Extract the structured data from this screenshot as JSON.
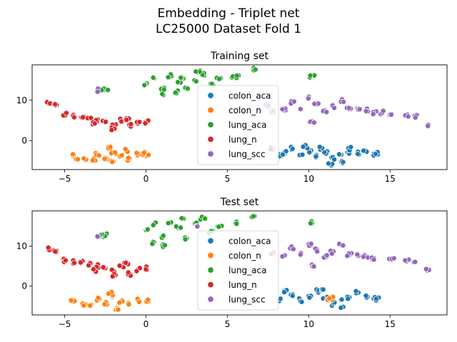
{
  "figure": {
    "suptitle_line1": "Embedding - Triplet net",
    "suptitle_line2": "LC25000  Dataset Fold 1"
  },
  "chart_data": [
    {
      "type": "scatter",
      "title": "Training set",
      "xlabel": "",
      "ylabel": "",
      "xlim": [
        -7,
        18.5
      ],
      "ylim": [
        -7.2,
        18.8
      ],
      "xticks": [
        -5,
        0,
        5,
        10,
        15
      ],
      "yticks": [
        0,
        10
      ],
      "grid": false,
      "legend_position": "center",
      "series": [
        {
          "name": "colon_aca",
          "color": "#1f77b4",
          "points": [
            [
              8.5,
              -2.8
            ],
            [
              9.0,
              -2.0
            ],
            [
              9.5,
              -3.5
            ],
            [
              10.0,
              -2.5
            ],
            [
              10.5,
              -4.0
            ],
            [
              11.0,
              -3.0
            ],
            [
              11.5,
              -4.5
            ],
            [
              12.0,
              -3.5
            ],
            [
              12.5,
              -2.8
            ],
            [
              13.0,
              -3.2
            ],
            [
              13.5,
              -2.5
            ],
            [
              14.0,
              -3.3
            ],
            [
              14.2,
              -3.3
            ],
            [
              11.3,
              -5.8
            ],
            [
              12.0,
              -5.3
            ],
            [
              9.8,
              -1.5
            ],
            [
              10.8,
              -2.0
            ],
            [
              12.5,
              -2.0
            ],
            [
              7.8,
              -2.0
            ],
            [
              8.3,
              -3.8
            ]
          ]
        },
        {
          "name": "colon_n",
          "color": "#ff7f0e",
          "points": [
            [
              -4.5,
              -3.8
            ],
            [
              -3.8,
              -4.5
            ],
            [
              -3.0,
              -3.5
            ],
            [
              -2.5,
              -4.2
            ],
            [
              -2.0,
              -3.0
            ],
            [
              -1.5,
              -3.8
            ],
            [
              -1.0,
              -4.5
            ],
            [
              -0.5,
              -3.5
            ],
            [
              0.0,
              -3.8
            ],
            [
              -2.2,
              -2.0
            ],
            [
              -1.2,
              -2.5
            ],
            [
              -3.2,
              -4.8
            ],
            [
              -2.0,
              -5.2
            ],
            [
              -4.3,
              -4.6
            ],
            [
              -0.2,
              -3.2
            ]
          ]
        },
        {
          "name": "lung_aca",
          "color": "#2ca02c",
          "points": [
            [
              0.0,
              14.0
            ],
            [
              0.5,
              15.5
            ],
            [
              1.0,
              13.0
            ],
            [
              1.5,
              16.0
            ],
            [
              2.0,
              14.5
            ],
            [
              2.5,
              12.8
            ],
            [
              3.0,
              15.0
            ],
            [
              3.5,
              16.5
            ],
            [
              4.0,
              14.0
            ],
            [
              1.0,
              11.5
            ],
            [
              1.8,
              12.0
            ],
            [
              3.2,
              17.0
            ],
            [
              2.2,
              15.8
            ],
            [
              4.5,
              15.5
            ],
            [
              5.3,
              15.6
            ],
            [
              5.6,
              15.8
            ],
            [
              6.6,
              17.6
            ],
            [
              10.2,
              16.1
            ],
            [
              -2.5,
              12.8
            ],
            [
              -2.8,
              12.7
            ]
          ]
        },
        {
          "name": "lung_n",
          "color": "#d62728",
          "points": [
            [
              -6.0,
              9.2
            ],
            [
              -5.5,
              8.8
            ],
            [
              -5.0,
              6.5
            ],
            [
              -4.5,
              6.0
            ],
            [
              -4.0,
              5.8
            ],
            [
              -3.5,
              5.5
            ],
            [
              -3.0,
              5.0
            ],
            [
              -2.5,
              4.5
            ],
            [
              -2.0,
              4.0
            ],
            [
              -1.5,
              5.0
            ],
            [
              -1.0,
              3.8
            ],
            [
              -0.5,
              4.2
            ],
            [
              0.0,
              4.6
            ],
            [
              -2.0,
              3.0
            ],
            [
              -1.2,
              5.5
            ],
            [
              -3.2,
              4.2
            ]
          ]
        },
        {
          "name": "lung_scc",
          "color": "#9467bd",
          "points": [
            [
              7.8,
              7.2
            ],
            [
              8.5,
              7.5
            ],
            [
              9.0,
              9.5
            ],
            [
              9.5,
              8.0
            ],
            [
              10.0,
              10.5
            ],
            [
              10.5,
              9.0
            ],
            [
              11.0,
              7.5
            ],
            [
              11.5,
              8.5
            ],
            [
              12.0,
              9.8
            ],
            [
              12.5,
              7.8
            ],
            [
              13.0,
              8.0
            ],
            [
              13.5,
              7.5
            ],
            [
              14.0,
              7.0
            ],
            [
              14.5,
              7.0
            ],
            [
              15.1,
              6.6
            ],
            [
              16.0,
              6.2
            ],
            [
              16.5,
              6.1
            ],
            [
              17.3,
              3.9
            ],
            [
              10.2,
              4.8
            ],
            [
              7.5,
              8.5
            ],
            [
              -3.0,
              12.5
            ]
          ]
        }
      ]
    },
    {
      "type": "scatter",
      "title": "Test set",
      "xlabel": "",
      "ylabel": "",
      "xlim": [
        -7,
        18.5
      ],
      "ylim": [
        -7.2,
        18.8
      ],
      "xticks": [
        -5,
        0,
        5,
        10,
        15
      ],
      "yticks": [
        0,
        10
      ],
      "grid": false,
      "legend_position": "center",
      "series": [
        {
          "name": "colon_aca",
          "color": "#1f77b4",
          "points": [
            [
              8.5,
              -1.2
            ],
            [
              9.0,
              -2.0
            ],
            [
              9.5,
              -3.5
            ],
            [
              10.0,
              -2.5
            ],
            [
              10.5,
              -1.2
            ],
            [
              11.0,
              -3.0
            ],
            [
              11.5,
              -4.5
            ],
            [
              12.0,
              -3.5
            ],
            [
              12.5,
              -2.8
            ],
            [
              13.0,
              -1.5
            ],
            [
              13.5,
              -2.5
            ],
            [
              14.0,
              -3.2
            ],
            [
              14.2,
              -3.2
            ],
            [
              12.0,
              -5.5
            ],
            [
              8.2,
              -3.5
            ],
            [
              10.8,
              -1.0
            ]
          ]
        },
        {
          "name": "colon_n",
          "color": "#ff7f0e",
          "points": [
            [
              -4.5,
              -3.5
            ],
            [
              -3.8,
              -4.5
            ],
            [
              -3.0,
              -3.2
            ],
            [
              -2.5,
              -4.2
            ],
            [
              -2.0,
              -2.5
            ],
            [
              -1.5,
              -3.8
            ],
            [
              -1.0,
              -4.5
            ],
            [
              -0.5,
              -3.5
            ],
            [
              0.0,
              -3.8
            ],
            [
              -2.2,
              -1.8
            ],
            [
              -1.8,
              -5.5
            ],
            [
              -3.5,
              -4.8
            ],
            [
              11.2,
              -3.3
            ],
            [
              11.4,
              -3.0
            ]
          ]
        },
        {
          "name": "lung_aca",
          "color": "#2ca02c",
          "points": [
            [
              0.0,
              14.0
            ],
            [
              0.5,
              15.5
            ],
            [
              1.0,
              12.5
            ],
            [
              1.5,
              16.0
            ],
            [
              2.0,
              14.5
            ],
            [
              2.5,
              12.0
            ],
            [
              3.0,
              15.5
            ],
            [
              3.5,
              17.0
            ],
            [
              4.0,
              13.5
            ],
            [
              0.5,
              11.0
            ],
            [
              1.0,
              10.2
            ],
            [
              2.2,
              16.8
            ],
            [
              4.5,
              15.0
            ],
            [
              5.5,
              15.8
            ],
            [
              6.6,
              17.6
            ],
            [
              10.2,
              16.1
            ],
            [
              -2.5,
              12.7
            ],
            [
              -2.8,
              12.5
            ]
          ]
        },
        {
          "name": "lung_n",
          "color": "#d62728",
          "points": [
            [
              -6.0,
              9.2
            ],
            [
              -5.5,
              8.8
            ],
            [
              -5.0,
              6.5
            ],
            [
              -4.5,
              6.0
            ],
            [
              -4.0,
              5.8
            ],
            [
              -3.5,
              5.5
            ],
            [
              -3.0,
              5.0
            ],
            [
              -2.5,
              4.5
            ],
            [
              -2.0,
              4.0
            ],
            [
              -1.5,
              5.0
            ],
            [
              -1.0,
              3.0
            ],
            [
              -0.5,
              4.2
            ],
            [
              0.0,
              4.5
            ],
            [
              -2.0,
              2.8
            ],
            [
              -1.2,
              5.8
            ],
            [
              -3.2,
              4.0
            ]
          ]
        },
        {
          "name": "lung_scc",
          "color": "#9467bd",
          "points": [
            [
              7.8,
              8.2
            ],
            [
              8.5,
              7.5
            ],
            [
              9.0,
              9.5
            ],
            [
              9.5,
              8.0
            ],
            [
              10.0,
              10.5
            ],
            [
              10.5,
              9.0
            ],
            [
              11.0,
              7.5
            ],
            [
              11.5,
              8.5
            ],
            [
              12.0,
              10.2
            ],
            [
              12.5,
              7.8
            ],
            [
              13.0,
              8.0
            ],
            [
              13.5,
              7.5
            ],
            [
              14.0,
              7.0
            ],
            [
              15.1,
              6.6
            ],
            [
              16.0,
              6.2
            ],
            [
              16.5,
              6.1
            ],
            [
              17.3,
              3.9
            ],
            [
              10.2,
              5.0
            ],
            [
              3.1,
              15.0
            ],
            [
              -3.0,
              12.4
            ]
          ]
        }
      ]
    }
  ]
}
